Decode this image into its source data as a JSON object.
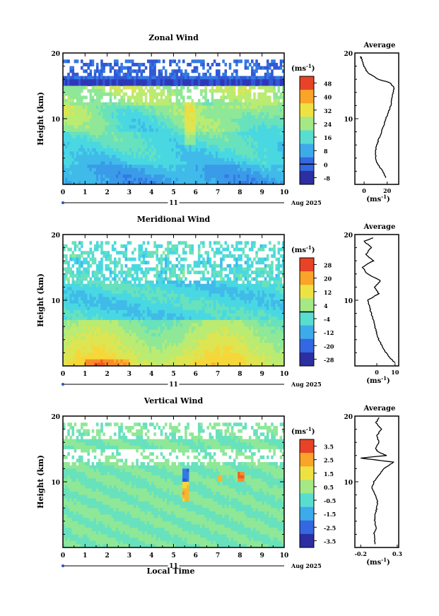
{
  "figure": {
    "date_label": "Aug 2025",
    "day_label": "11",
    "xlabel": "Local Time"
  },
  "chart_data": [
    {
      "type": "heatmap",
      "title": "Zonal Wind",
      "ylabel": "Height (km)",
      "xlim": [
        0,
        10
      ],
      "ylim": [
        0,
        20
      ],
      "x_ticks": [
        0,
        1,
        2,
        3,
        4,
        5,
        6,
        7,
        8,
        9,
        10
      ],
      "y_ticks": [
        10,
        20
      ],
      "colorbar": {
        "unit_label": "(ms",
        "unit_exp": "-1",
        "unit_close": ")",
        "ticks": [
          "48",
          "40",
          "32",
          "24",
          "16",
          "8",
          "0",
          "-8"
        ],
        "min": -12,
        "max": 52,
        "contour_level": 0
      },
      "profile": {
        "title": "Average",
        "xlim": [
          -8,
          30
        ],
        "x_ticks": [
          "0",
          "20"
        ],
        "x_tick_values": [
          0,
          20
        ],
        "xlabel": "(ms",
        "xlabel_exp": "-1",
        "xlabel_close": ")",
        "heights": [
          1,
          2,
          3,
          4,
          5,
          6,
          7,
          8,
          9,
          10,
          11,
          12,
          13,
          14,
          14.8,
          15.5,
          16,
          17,
          18,
          19,
          19.5
        ],
        "values": [
          19,
          16,
          12,
          10,
          10,
          11,
          13,
          15,
          17,
          19,
          21,
          23,
          24,
          25,
          26,
          22,
          12,
          3,
          0,
          -2,
          -3
        ]
      }
    },
    {
      "type": "heatmap",
      "title": "Meridional Wind",
      "ylabel": "Height (km)",
      "xlim": [
        0,
        10
      ],
      "ylim": [
        0,
        20
      ],
      "x_ticks": [
        0,
        1,
        2,
        3,
        4,
        5,
        6,
        7,
        8,
        9,
        10
      ],
      "y_ticks": [
        10,
        20
      ],
      "colorbar": {
        "unit_label": "(ms",
        "unit_exp": "-1",
        "unit_close": ")",
        "ticks": [
          "28",
          "20",
          "12",
          "4",
          "-4",
          "-12",
          "-20",
          "-28"
        ],
        "min": -32,
        "max": 32,
        "contour_level": 0
      },
      "profile": {
        "title": "Average",
        "xlim": [
          -12,
          12
        ],
        "x_ticks": [
          "0",
          "10"
        ],
        "x_tick_values": [
          0,
          10
        ],
        "xlabel": "(ms",
        "xlabel_exp": "-1",
        "xlabel_close": ")",
        "heights": [
          0.5,
          1,
          2,
          3,
          4,
          5,
          6,
          7,
          8,
          9,
          10,
          11,
          12,
          13,
          14,
          15,
          16,
          17,
          18,
          19,
          19.5
        ],
        "values": [
          10,
          8,
          5,
          3,
          1,
          0,
          -1,
          -2,
          -3,
          -4,
          -5,
          1,
          -1,
          2,
          -5,
          -8,
          -2,
          -6,
          -3,
          -7,
          -2
        ]
      }
    },
    {
      "type": "heatmap",
      "title": "Vertical Wind",
      "ylabel": "Height (km)",
      "xlim": [
        0,
        10
      ],
      "ylim": [
        0,
        20
      ],
      "x_ticks": [
        0,
        1,
        2,
        3,
        4,
        5,
        6,
        7,
        8,
        9,
        10
      ],
      "y_ticks": [
        10,
        20
      ],
      "colorbar": {
        "unit_label": "(ms",
        "unit_exp": "-1",
        "unit_close": ")",
        "ticks": [
          "3.5",
          "2.5",
          "1.5",
          "0.5",
          "-0.5",
          "-1.5",
          "-2.5",
          "-3.5"
        ],
        "min": -4,
        "max": 4,
        "contour_level": null
      },
      "profile": {
        "title": "Average",
        "xlim": [
          -0.28,
          0.32
        ],
        "x_ticks": [
          "-0.2",
          "0.3"
        ],
        "x_tick_values": [
          -0.2,
          0.3
        ],
        "xlabel": "(ms",
        "xlabel_exp": "-1",
        "xlabel_close": ")",
        "heights": [
          0.5,
          2,
          3,
          4,
          5,
          6,
          7,
          8,
          9,
          10,
          11,
          12,
          13,
          13.6,
          14,
          14.5,
          15,
          16,
          17,
          18,
          19,
          19.8
        ],
        "values": [
          0.0,
          -0.02,
          0.01,
          -0.01,
          0.0,
          0.02,
          0.03,
          0.0,
          -0.05,
          -0.02,
          0.05,
          0.12,
          0.25,
          -0.2,
          0.15,
          0.05,
          0.0,
          0.05,
          0.02,
          0.08,
          0.01,
          0.05
        ]
      }
    }
  ]
}
